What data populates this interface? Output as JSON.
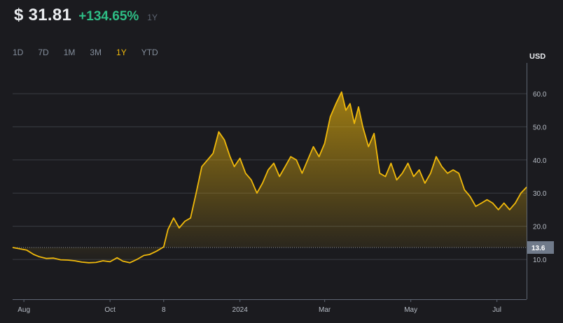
{
  "header": {
    "price": "$ 31.81",
    "change": "+134.65%",
    "period": "1Y"
  },
  "range_tabs": [
    "1D",
    "7D",
    "1M",
    "3M",
    "1Y",
    "YTD"
  ],
  "active_tab": "1Y",
  "currency_label": "USD",
  "colors": {
    "line": "#f0b90b",
    "up": "#2ebd85",
    "grid": "#2b2f36",
    "background": "#1b1b1f"
  },
  "chart_data": {
    "type": "area",
    "title": "",
    "xlabel": "",
    "ylabel": "USD",
    "ylim": [
      -2,
      68
    ],
    "yticks": [
      10,
      20,
      30,
      40,
      50,
      60
    ],
    "ytick_labels": [
      "10.0",
      "20.0",
      "30.0",
      "40.0",
      "50.0",
      "60.0"
    ],
    "xticks": [
      {
        "label": "Aug",
        "date": "2023-08-01"
      },
      {
        "label": "Oct",
        "date": "2023-10-01"
      },
      {
        "label": "8",
        "date": "2023-11-08"
      },
      {
        "label": "2024",
        "date": "2024-01-01"
      },
      {
        "label": "Mar",
        "date": "2024-03-01"
      },
      {
        "label": "May",
        "date": "2024-05-01"
      },
      {
        "label": "Jul",
        "date": "2024-07-01"
      }
    ],
    "xlim": [
      "2023-07-24",
      "2024-07-22"
    ],
    "reference_line": {
      "value": 13.6,
      "label": "13.6"
    },
    "grid": true,
    "series": [
      {
        "x": [
          "2023-07-24",
          "2023-07-29",
          "2023-08-03",
          "2023-08-08",
          "2023-08-12",
          "2023-08-17",
          "2023-08-22",
          "2023-08-27",
          "2023-09-01",
          "2023-09-06",
          "2023-09-11",
          "2023-09-16",
          "2023-09-21",
          "2023-09-26",
          "2023-10-01",
          "2023-10-06",
          "2023-10-10",
          "2023-10-15",
          "2023-10-20",
          "2023-10-25",
          "2023-10-29",
          "2023-11-03",
          "2023-11-08",
          "2023-11-11",
          "2023-11-15",
          "2023-11-19",
          "2023-11-23",
          "2023-11-27",
          "2023-12-01",
          "2023-12-05",
          "2023-12-09",
          "2023-12-13",
          "2023-12-17",
          "2023-12-21",
          "2023-12-25",
          "2023-12-28",
          "2024-01-01",
          "2024-01-05",
          "2024-01-09",
          "2024-01-13",
          "2024-01-17",
          "2024-01-21",
          "2024-01-25",
          "2024-01-29",
          "2024-02-02",
          "2024-02-06",
          "2024-02-10",
          "2024-02-14",
          "2024-02-18",
          "2024-02-22",
          "2024-02-26",
          "2024-03-01",
          "2024-03-05",
          "2024-03-09",
          "2024-03-13",
          "2024-03-16",
          "2024-03-19",
          "2024-03-22",
          "2024-03-25",
          "2024-03-28",
          "2024-04-01",
          "2024-04-05",
          "2024-04-09",
          "2024-04-13",
          "2024-04-17",
          "2024-04-21",
          "2024-04-25",
          "2024-04-29",
          "2024-05-03",
          "2024-05-07",
          "2024-05-11",
          "2024-05-15",
          "2024-05-19",
          "2024-05-23",
          "2024-05-27",
          "2024-05-31",
          "2024-06-04",
          "2024-06-08",
          "2024-06-12",
          "2024-06-16",
          "2024-06-20",
          "2024-06-24",
          "2024-06-28",
          "2024-07-02",
          "2024-07-06",
          "2024-07-10",
          "2024-07-14",
          "2024-07-18",
          "2024-07-22"
        ],
        "values": [
          13.6,
          13.2,
          12.8,
          11.5,
          10.8,
          10.3,
          10.4,
          9.9,
          9.8,
          9.6,
          9.2,
          9.0,
          9.1,
          9.6,
          9.3,
          10.5,
          9.5,
          9.0,
          10.0,
          11.2,
          11.5,
          12.5,
          13.8,
          19.0,
          22.5,
          19.5,
          21.5,
          22.5,
          30.0,
          38.0,
          40.0,
          42.0,
          48.5,
          46.0,
          41.0,
          38.0,
          40.5,
          36.0,
          34.0,
          30.0,
          33.0,
          37.0,
          39.0,
          35.0,
          38.0,
          41.0,
          40.0,
          36.0,
          40.0,
          44.0,
          41.0,
          45.0,
          53.0,
          57.0,
          60.5,
          55.0,
          57.0,
          51.0,
          56.0,
          50.0,
          44.0,
          48.0,
          36.0,
          35.0,
          39.0,
          34.0,
          36.0,
          39.0,
          35.0,
          37.0,
          33.0,
          36.0,
          41.0,
          38.0,
          36.0,
          37.0,
          36.0,
          31.0,
          29.0,
          26.0,
          27.0,
          28.0,
          27.0,
          25.0,
          27.0,
          25.0,
          27.0,
          30.0,
          31.81
        ]
      }
    ]
  }
}
